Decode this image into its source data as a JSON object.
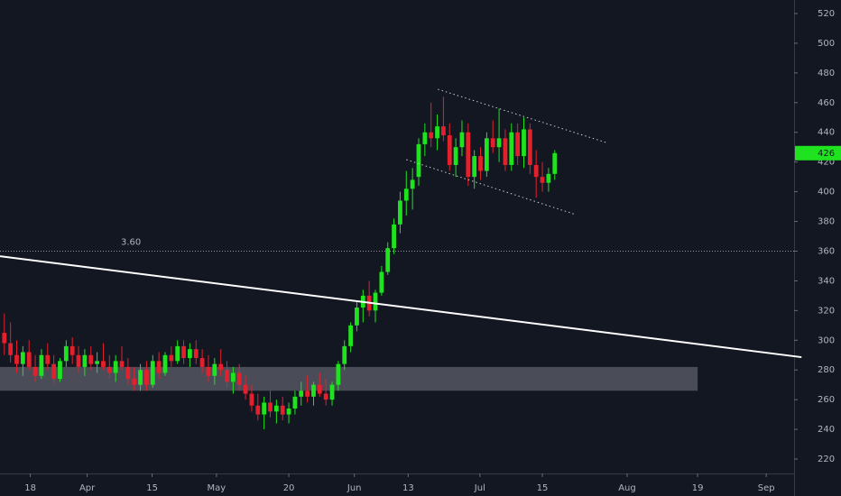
{
  "chart_data": {
    "type": "candlestick",
    "up_color": "#1ee31e",
    "down_color": "#e3202c",
    "background": "#131722",
    "open": [
      305,
      298,
      290,
      284,
      292,
      282,
      276,
      290,
      284,
      274,
      286,
      296,
      290,
      282,
      290,
      284,
      286,
      282,
      278,
      286,
      282,
      274,
      270,
      280,
      270,
      286,
      278,
      290,
      286,
      296,
      288,
      294,
      288,
      282,
      276,
      284,
      280,
      272,
      278,
      270,
      264,
      256,
      250,
      258,
      252,
      256,
      250,
      254,
      262,
      266,
      262,
      270,
      264,
      260,
      270,
      284,
      296,
      310,
      322,
      330,
      320,
      332,
      346,
      362,
      378,
      394,
      402,
      410,
      432,
      440,
      436,
      444,
      438,
      418,
      430,
      440,
      410,
      424,
      414,
      436,
      430,
      436,
      418,
      440,
      424,
      442,
      418,
      410,
      406,
      412
    ],
    "high": [
      318,
      312,
      300,
      296,
      300,
      290,
      294,
      298,
      290,
      288,
      300,
      302,
      296,
      294,
      296,
      292,
      298,
      290,
      290,
      296,
      288,
      282,
      284,
      286,
      290,
      292,
      292,
      296,
      300,
      300,
      298,
      300,
      294,
      290,
      288,
      294,
      286,
      282,
      284,
      276,
      270,
      264,
      262,
      266,
      260,
      262,
      258,
      266,
      272,
      276,
      272,
      278,
      274,
      272,
      286,
      300,
      312,
      326,
      334,
      340,
      334,
      350,
      366,
      382,
      400,
      414,
      416,
      436,
      446,
      460,
      452,
      464,
      446,
      436,
      448,
      446,
      428,
      430,
      440,
      448,
      456,
      442,
      446,
      446,
      450,
      446,
      428,
      420,
      416,
      428
    ],
    "low": [
      290,
      285,
      278,
      276,
      280,
      272,
      274,
      280,
      270,
      272,
      282,
      284,
      278,
      276,
      280,
      278,
      280,
      274,
      272,
      280,
      270,
      266,
      266,
      266,
      268,
      274,
      276,
      282,
      284,
      284,
      282,
      284,
      278,
      272,
      270,
      276,
      268,
      264,
      266,
      260,
      252,
      246,
      240,
      248,
      244,
      246,
      244,
      250,
      256,
      258,
      256,
      262,
      256,
      256,
      266,
      280,
      292,
      306,
      312,
      316,
      312,
      330,
      344,
      358,
      372,
      384,
      388,
      404,
      424,
      430,
      428,
      434,
      414,
      410,
      424,
      404,
      402,
      408,
      410,
      426,
      420,
      414,
      414,
      418,
      416,
      412,
      396,
      400,
      400,
      408
    ],
    "close": [
      298,
      290,
      284,
      292,
      282,
      276,
      290,
      284,
      274,
      286,
      296,
      290,
      282,
      290,
      284,
      286,
      282,
      278,
      286,
      282,
      274,
      270,
      280,
      270,
      286,
      278,
      290,
      286,
      296,
      288,
      294,
      288,
      282,
      276,
      284,
      280,
      272,
      278,
      270,
      264,
      256,
      250,
      258,
      252,
      256,
      250,
      254,
      262,
      266,
      262,
      270,
      264,
      260,
      270,
      284,
      296,
      310,
      322,
      330,
      320,
      332,
      346,
      362,
      378,
      394,
      402,
      408,
      432,
      440,
      436,
      444,
      438,
      418,
      430,
      440,
      410,
      424,
      414,
      436,
      430,
      436,
      418,
      440,
      424,
      442,
      418,
      410,
      406,
      412,
      426
    ],
    "xlim": [
      -0.7,
      127.7
    ],
    "xticks": [
      {
        "value": 4.2,
        "label": "18"
      },
      {
        "value": 13.4,
        "label": "Apr"
      },
      {
        "value": 23.9,
        "label": "15"
      },
      {
        "value": 34.3,
        "label": "May"
      },
      {
        "value": 46,
        "label": "20"
      },
      {
        "value": 56.6,
        "label": "Jun"
      },
      {
        "value": 65.3,
        "label": "13"
      },
      {
        "value": 76.9,
        "label": "Jul"
      },
      {
        "value": 87,
        "label": "15"
      },
      {
        "value": 100.7,
        "label": "Aug"
      },
      {
        "value": 112.1,
        "label": "19"
      },
      {
        "value": 123.2,
        "label": "Sep"
      }
    ],
    "ylim": [
      210.3,
      529.1
    ],
    "yticks": [
      220,
      240,
      260,
      280,
      300,
      320,
      340,
      360,
      380,
      400,
      420,
      440,
      460,
      480,
      500,
      520
    ],
    "last_price": 426,
    "level_line": 360,
    "level_label": "3.60",
    "zone": {
      "x": [
        -0.7,
        112.1
      ],
      "y": [
        266,
        282
      ]
    },
    "trend_lines": [
      {
        "x": [
          -0.7,
          128.9
        ],
        "y": [
          356.6,
          288.6
        ],
        "style": "solid"
      },
      {
        "x": [
          70.1,
          97.4
        ],
        "y": [
          469,
          433
        ],
        "style": "dotted"
      },
      {
        "x": [
          65,
          92.1
        ],
        "y": [
          421.6,
          385
        ],
        "style": "dotted"
      }
    ]
  }
}
